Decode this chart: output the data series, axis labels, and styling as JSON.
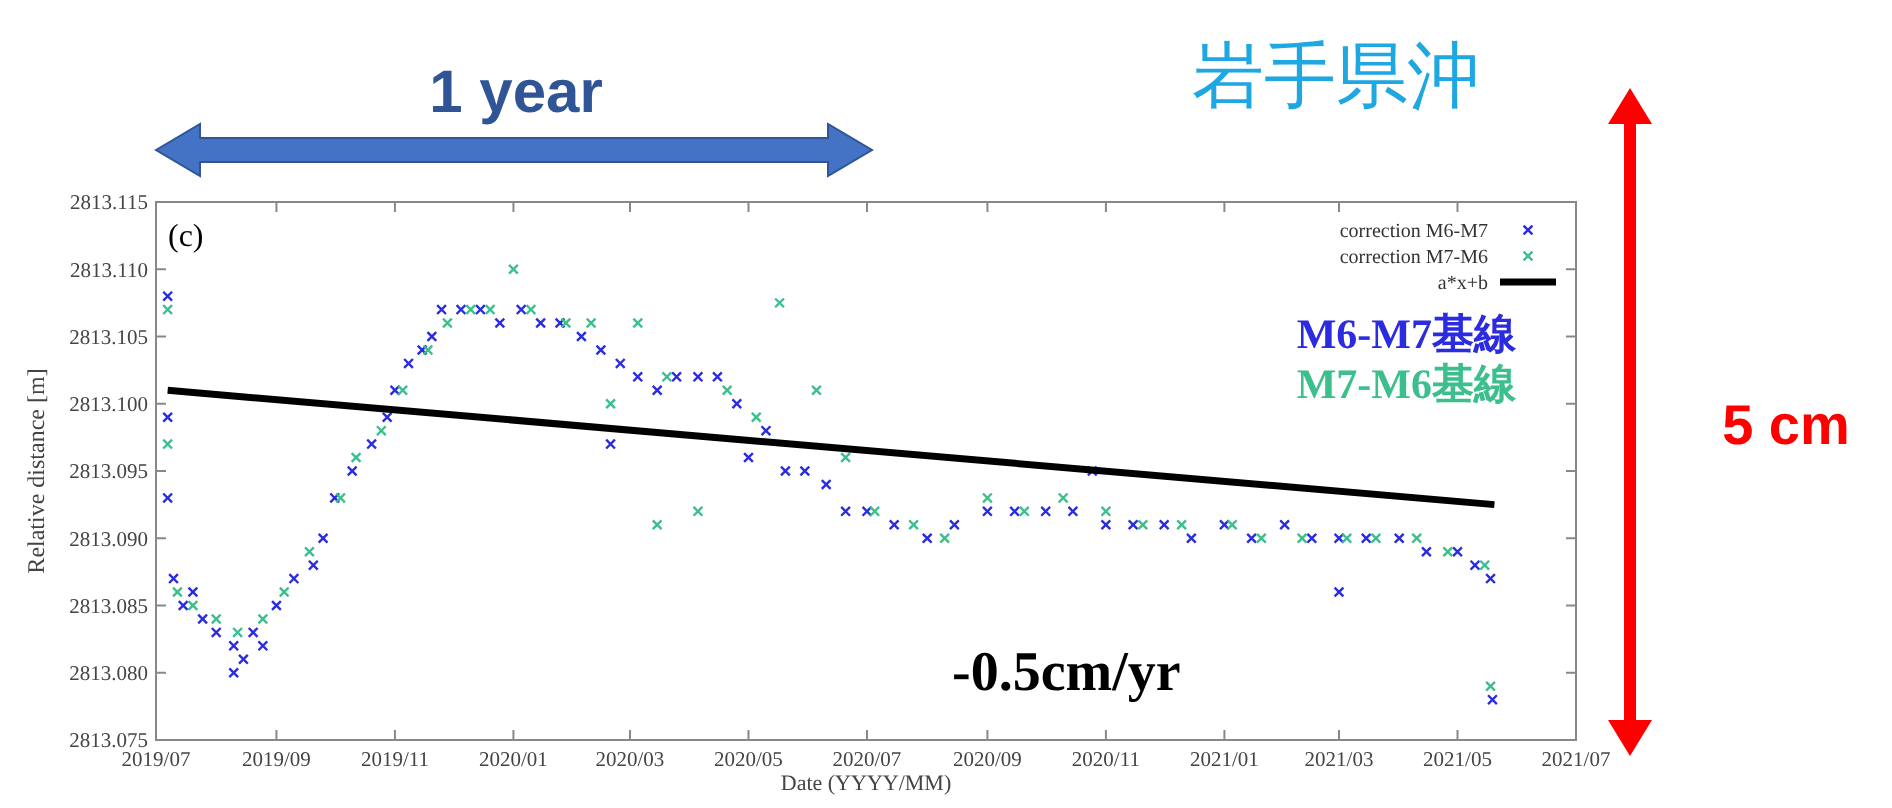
{
  "chart_data": {
    "type": "scatter",
    "title": "岩手県沖",
    "xlabel": "Date (YYYY/MM)",
    "ylabel": "Relative distance [m]",
    "xlim": [
      "2019-07",
      "2021-07"
    ],
    "xticks": [
      {
        "value": "2019-07",
        "label": "2019/07"
      },
      {
        "value": "2019-09",
        "label": "2019/09"
      },
      {
        "value": "2019-11",
        "label": "2019/11"
      },
      {
        "value": "2020-01",
        "label": "2020/01"
      },
      {
        "value": "2020-03",
        "label": "2020/03"
      },
      {
        "value": "2020-05",
        "label": "2020/05"
      },
      {
        "value": "2020-07",
        "label": "2020/07"
      },
      {
        "value": "2020-09",
        "label": "2020/09"
      },
      {
        "value": "2020-11",
        "label": "2020/11"
      },
      {
        "value": "2021-01",
        "label": "2021/01"
      },
      {
        "value": "2021-03",
        "label": "2021/03"
      },
      {
        "value": "2021-05",
        "label": "2021/05"
      },
      {
        "value": "2021-07",
        "label": "2021/07"
      }
    ],
    "ylim": [
      2813.075,
      2813.115
    ],
    "yticks": [
      2813.075,
      {
        "value": 2813.08,
        "label": "2813.080"
      },
      2813.085,
      {
        "value": 2813.09,
        "label": "2813.090"
      },
      2813.095,
      {
        "value": 2813.1,
        "label": "2813.100"
      },
      2813.105,
      {
        "value": 2813.11,
        "label": "2813.110"
      },
      2813.115
    ],
    "grid": false,
    "legend": "top right",
    "marker": "cross",
    "series": [
      {
        "name": "correction M6-M7",
        "color": "#2b2be0",
        "x": [
          "2019-07-07",
          "2019-07-07",
          "2019-07-07",
          "2019-07-10",
          "2019-07-15",
          "2019-07-20",
          "2019-07-25",
          "2019-08-01",
          "2019-08-10",
          "2019-08-10",
          "2019-08-15",
          "2019-08-20",
          "2019-08-25",
          "2019-09-01",
          "2019-09-10",
          "2019-09-20",
          "2019-09-25",
          "2019-10-01",
          "2019-10-10",
          "2019-10-20",
          "2019-10-28",
          "2019-11-01",
          "2019-11-08",
          "2019-11-15",
          "2019-11-20",
          "2019-11-25",
          "2019-12-05",
          "2019-12-15",
          "2019-12-25",
          "2020-01-05",
          "2020-01-15",
          "2020-01-25",
          "2020-02-05",
          "2020-02-15",
          "2020-02-20",
          "2020-02-25",
          "2020-03-05",
          "2020-03-15",
          "2020-03-25",
          "2020-04-05",
          "2020-04-15",
          "2020-04-25",
          "2020-05-01",
          "2020-05-10",
          "2020-05-20",
          "2020-05-30",
          "2020-06-10",
          "2020-06-20",
          "2020-07-01",
          "2020-07-15",
          "2020-08-01",
          "2020-08-15",
          "2020-09-01",
          "2020-09-15",
          "2020-10-01",
          "2020-10-15",
          "2020-10-25",
          "2020-11-01",
          "2020-11-15",
          "2020-12-01",
          "2020-12-15",
          "2021-01-01",
          "2021-01-15",
          "2021-02-01",
          "2021-02-15",
          "2021-03-01",
          "2021-03-01",
          "2021-03-15",
          "2021-04-01",
          "2021-04-15",
          "2021-05-01",
          "2021-05-10",
          "2021-05-18",
          "2021-05-19"
        ],
        "values": [
          2813.108,
          2813.099,
          2813.093,
          2813.087,
          2813.085,
          2813.086,
          2813.084,
          2813.083,
          2813.082,
          2813.08,
          2813.081,
          2813.083,
          2813.082,
          2813.085,
          2813.087,
          2813.088,
          2813.09,
          2813.093,
          2813.095,
          2813.097,
          2813.099,
          2813.101,
          2813.103,
          2813.104,
          2813.105,
          2813.107,
          2813.107,
          2813.107,
          2813.106,
          2813.107,
          2813.106,
          2813.106,
          2813.105,
          2813.104,
          2813.097,
          2813.103,
          2813.102,
          2813.101,
          2813.102,
          2813.102,
          2813.102,
          2813.1,
          2813.096,
          2813.098,
          2813.095,
          2813.095,
          2813.094,
          2813.092,
          2813.092,
          2813.091,
          2813.09,
          2813.091,
          2813.092,
          2813.092,
          2813.092,
          2813.092,
          2813.095,
          2813.091,
          2813.091,
          2813.091,
          2813.09,
          2813.091,
          2813.09,
          2813.091,
          2813.09,
          2813.09,
          2813.086,
          2813.09,
          2813.09,
          2813.089,
          2813.089,
          2813.088,
          2813.087,
          2813.078
        ]
      },
      {
        "name": "correction M7-M6",
        "color": "#3cbf8c",
        "x": [
          "2019-07-07",
          "2019-07-07",
          "2019-07-12",
          "2019-07-20",
          "2019-08-01",
          "2019-08-12",
          "2019-08-25",
          "2019-09-05",
          "2019-09-18",
          "2019-10-04",
          "2019-10-12",
          "2019-10-25",
          "2019-11-05",
          "2019-11-18",
          "2019-11-28",
          "2019-12-10",
          "2019-12-20",
          "2020-01-01",
          "2020-01-10",
          "2020-01-28",
          "2020-02-10",
          "2020-02-20",
          "2020-03-05",
          "2020-03-15",
          "2020-03-20",
          "2020-04-05",
          "2020-04-20",
          "2020-05-05",
          "2020-05-17",
          "2020-06-05",
          "2020-06-20",
          "2020-07-05",
          "2020-07-25",
          "2020-08-10",
          "2020-09-01",
          "2020-09-20",
          "2020-10-10",
          "2020-11-01",
          "2020-11-20",
          "2020-12-10",
          "2021-01-05",
          "2021-01-20",
          "2021-02-10",
          "2021-03-05",
          "2021-03-20",
          "2021-04-10",
          "2021-04-26",
          "2021-05-15",
          "2021-05-18"
        ],
        "values": [
          2813.107,
          2813.097,
          2813.086,
          2813.085,
          2813.084,
          2813.083,
          2813.084,
          2813.086,
          2813.089,
          2813.093,
          2813.096,
          2813.098,
          2813.101,
          2813.104,
          2813.106,
          2813.107,
          2813.107,
          2813.11,
          2813.107,
          2813.106,
          2813.106,
          2813.1,
          2813.106,
          2813.091,
          2813.102,
          2813.092,
          2813.101,
          2813.099,
          2813.1075,
          2813.101,
          2813.096,
          2813.092,
          2813.091,
          2813.09,
          2813.093,
          2813.092,
          2813.093,
          2813.092,
          2813.091,
          2813.091,
          2813.091,
          2813.09,
          2813.09,
          2813.09,
          2813.09,
          2813.09,
          2813.089,
          2813.088,
          2813.079
        ]
      },
      {
        "name": "a*x+b",
        "type": "line",
        "color": "#000000",
        "marker": "none",
        "x": [
          "2019-07-07",
          "2021-05-20"
        ],
        "values": [
          2813.101,
          2813.0925
        ]
      }
    ],
    "annotations": [
      "(c)",
      "1 year",
      "5 cm",
      "-0.5cm/yr",
      "M6-M7基線",
      "M7-M6基線"
    ]
  }
}
